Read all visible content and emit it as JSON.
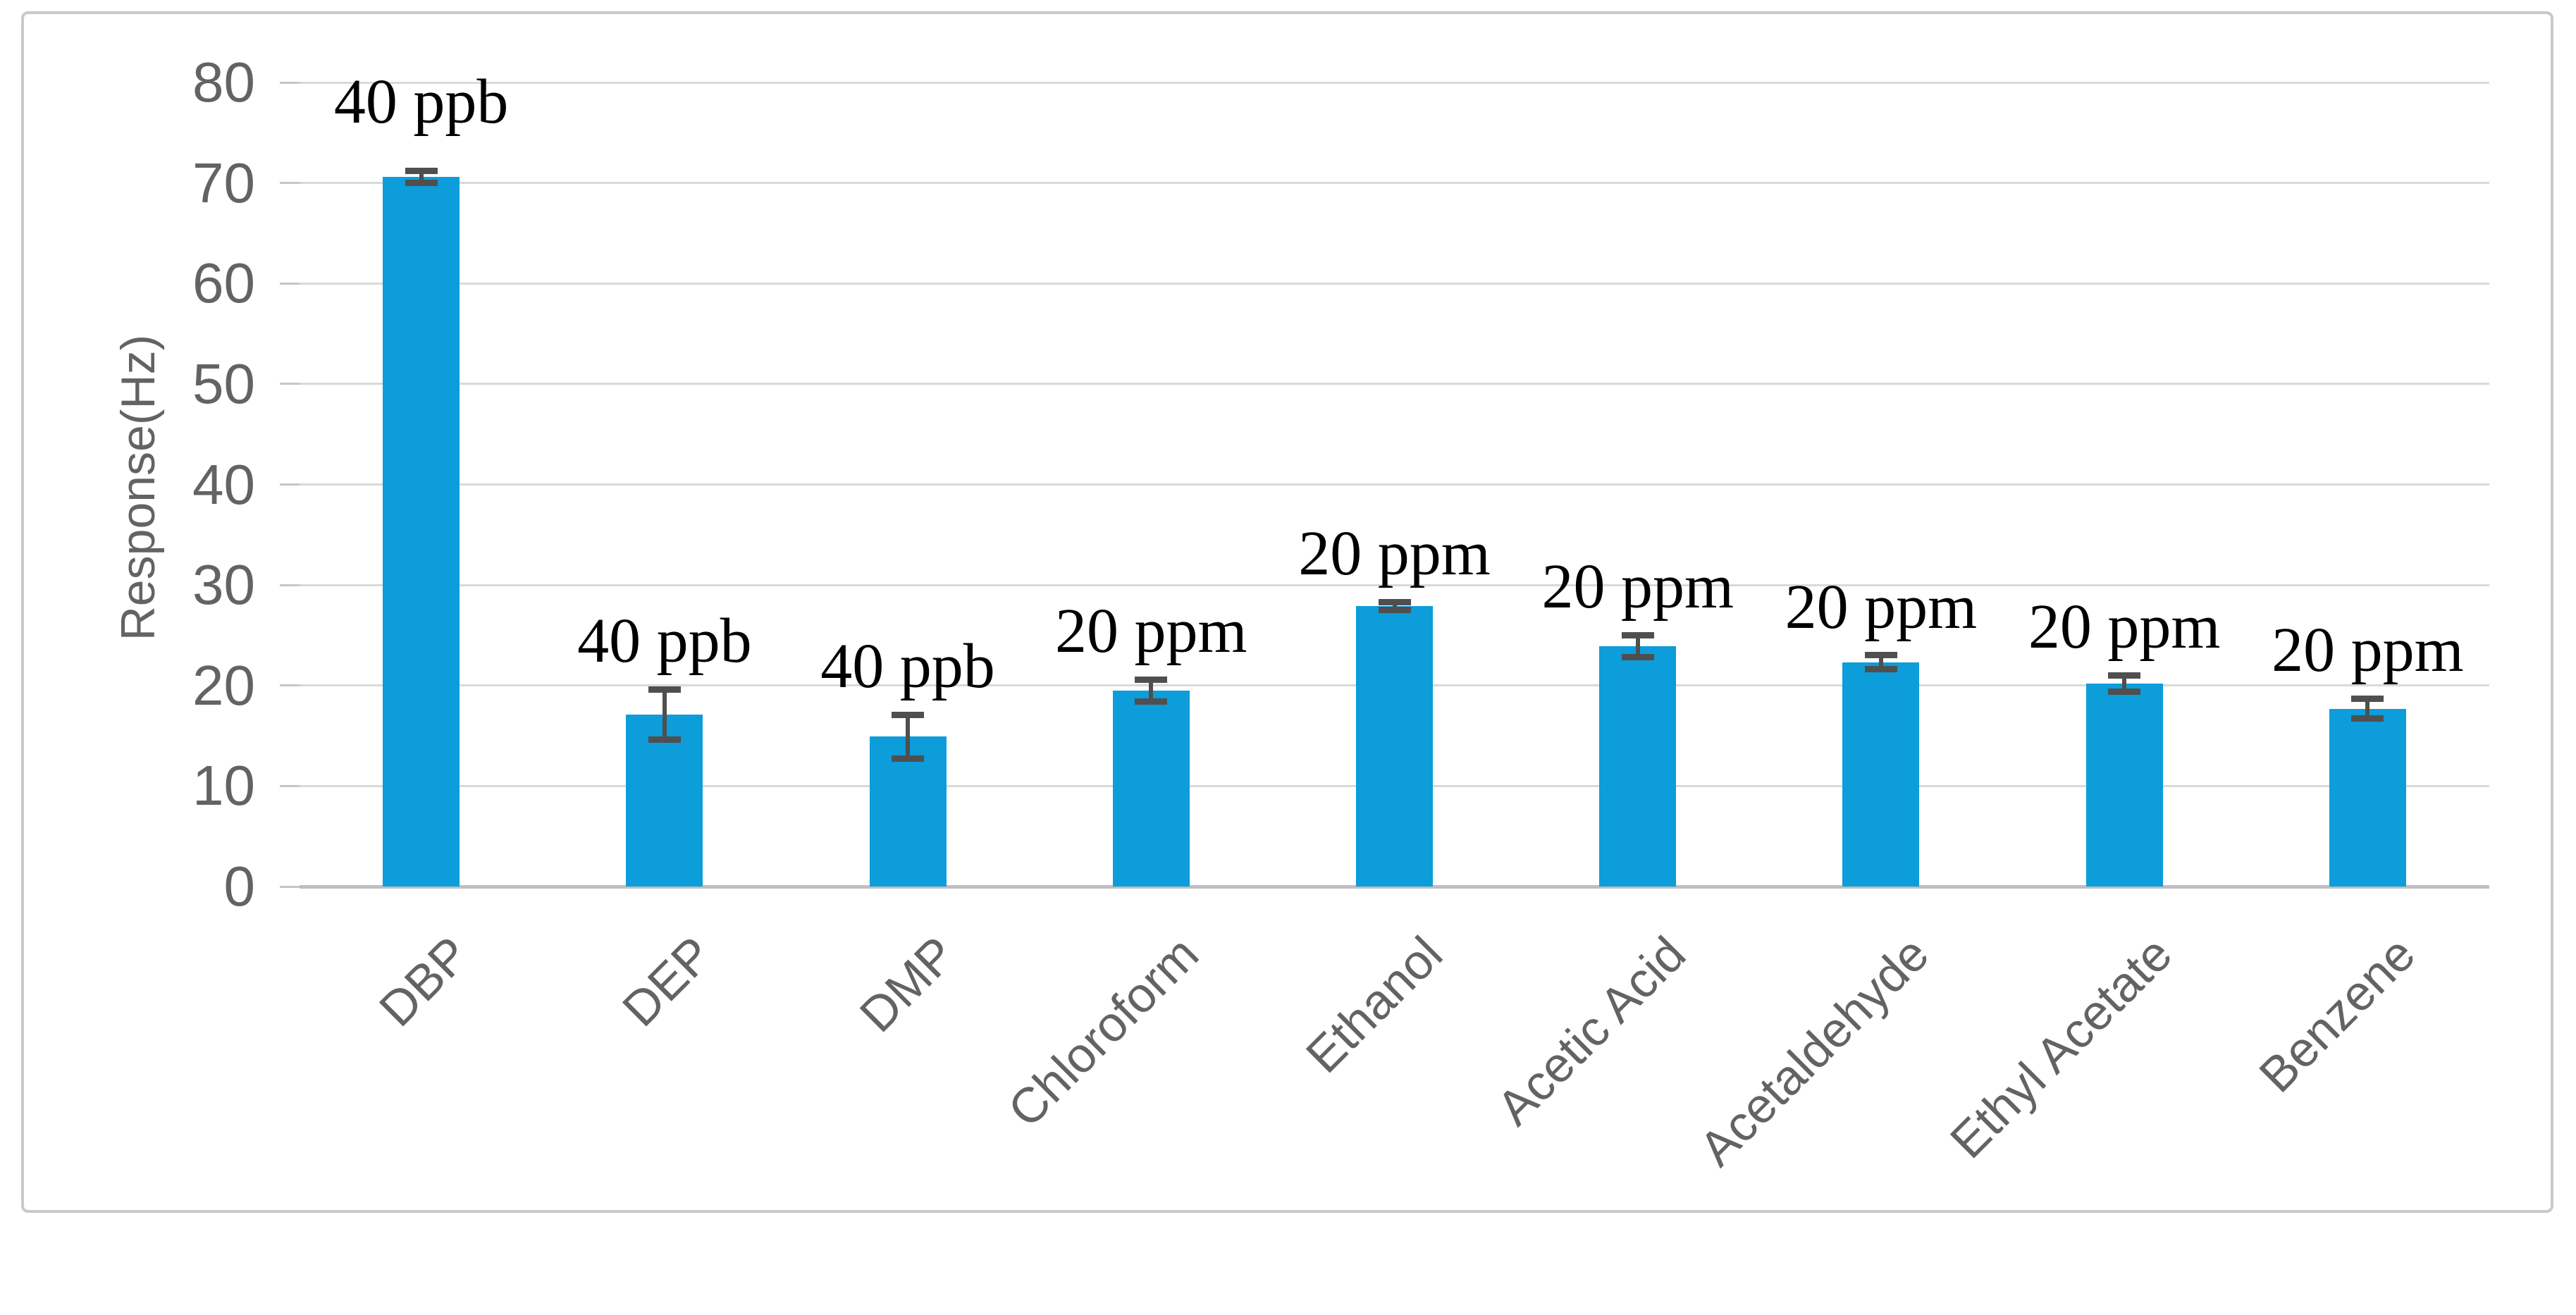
{
  "figure": {
    "background": "#ffffff",
    "frame_border_color": "#c9c9c9"
  },
  "chart_data": {
    "type": "bar",
    "title": "",
    "xlabel": "",
    "ylabel": "Response(Hz)",
    "ylim": [
      0,
      80
    ],
    "yticks": [
      0,
      10,
      20,
      30,
      40,
      50,
      60,
      70,
      80
    ],
    "grid": true,
    "legend": "none",
    "bar_color": "#0c9dda",
    "error_bar_color": "#4f4f4f",
    "gridline_color": "#d9d9d9",
    "axis_line_color": "#bfbfbf",
    "text_color": "#636363",
    "annotation_color": "#000000",
    "categories": [
      "DBP",
      "DEP",
      "DMP",
      "Chloroform",
      "Ethanol",
      "Acetic Acid",
      "Acetaldehyde",
      "Ethyl Acetate",
      "Benzene"
    ],
    "series": [
      {
        "name": "Response(Hz)",
        "values": [
          70.6,
          17.1,
          14.9,
          19.5,
          27.9,
          23.9,
          22.3,
          20.2,
          17.7
        ],
        "errors": [
          0.6,
          2.5,
          2.2,
          1.1,
          0.4,
          1.1,
          0.7,
          0.8,
          1.0
        ]
      }
    ],
    "annotations": [
      "40 ppb",
      "40 ppb",
      "40 ppb",
      "20 ppm",
      "20 ppm",
      "20 ppm",
      "20 ppm",
      "20 ppm",
      "20 ppm"
    ]
  }
}
